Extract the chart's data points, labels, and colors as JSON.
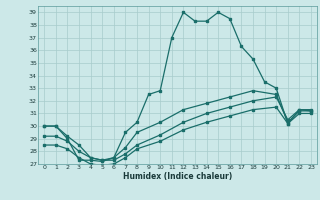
{
  "xlabel": "Humidex (Indice chaleur)",
  "bg_color": "#cce8e8",
  "line_color": "#1a6e6a",
  "grid_color": "#a8cccc",
  "ylim": [
    27,
    39.5
  ],
  "xlim": [
    -0.5,
    23.5
  ],
  "yticks": [
    27,
    28,
    29,
    30,
    31,
    32,
    33,
    34,
    35,
    36,
    37,
    38,
    39
  ],
  "xticks": [
    0,
    1,
    2,
    3,
    4,
    5,
    6,
    7,
    8,
    9,
    10,
    11,
    12,
    13,
    14,
    15,
    16,
    17,
    18,
    19,
    20,
    21,
    22,
    23
  ],
  "line1_x": [
    0,
    1,
    2,
    3,
    4,
    5,
    6,
    7,
    8,
    9,
    10,
    11,
    12,
    13,
    14,
    15,
    16,
    17,
    18,
    19,
    20,
    21,
    22,
    23
  ],
  "line1_y": [
    30.0,
    30.0,
    29.0,
    27.3,
    27.3,
    27.2,
    27.5,
    29.5,
    30.3,
    32.5,
    32.8,
    37.0,
    39.0,
    38.3,
    38.3,
    39.0,
    38.5,
    36.3,
    35.3,
    33.5,
    33.0,
    30.2,
    31.3,
    31.3
  ],
  "line2_x": [
    0,
    1,
    2,
    3,
    4,
    5,
    6,
    7,
    8,
    10,
    12,
    14,
    16,
    18,
    20,
    21,
    22,
    23
  ],
  "line2_y": [
    30.0,
    30.0,
    29.2,
    28.5,
    27.5,
    27.3,
    27.5,
    28.3,
    29.5,
    30.3,
    31.3,
    31.8,
    32.3,
    32.8,
    32.5,
    30.3,
    31.2,
    31.2
  ],
  "line3_x": [
    0,
    1,
    2,
    3,
    4,
    5,
    6,
    7,
    8,
    10,
    12,
    14,
    16,
    18,
    20,
    21,
    22,
    23
  ],
  "line3_y": [
    29.2,
    29.2,
    28.8,
    28.0,
    27.5,
    27.3,
    27.3,
    27.8,
    28.5,
    29.3,
    30.3,
    31.0,
    31.5,
    32.0,
    32.3,
    30.5,
    31.3,
    31.2
  ],
  "line4_x": [
    0,
    1,
    2,
    3,
    4,
    5,
    6,
    7,
    8,
    10,
    12,
    14,
    16,
    18,
    20,
    21,
    22,
    23
  ],
  "line4_y": [
    28.5,
    28.5,
    28.2,
    27.5,
    27.0,
    26.9,
    27.0,
    27.5,
    28.2,
    28.8,
    29.7,
    30.3,
    30.8,
    31.3,
    31.5,
    30.2,
    31.0,
    31.0
  ]
}
